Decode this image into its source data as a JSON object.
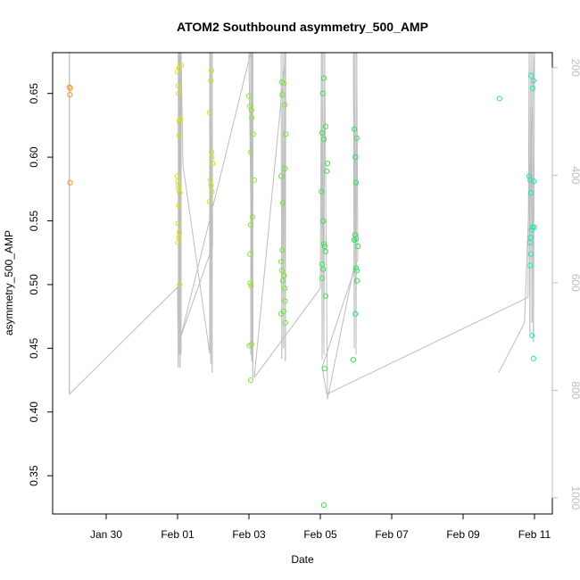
{
  "chart_data": {
    "type": "scatter",
    "title": "ATOM2 Southbound asymmetry_500_AMP",
    "xlabel": "Date",
    "ylabel": "asymmetry_500_AMP",
    "x_ticks": [
      "Jan 30",
      "Feb 01",
      "Feb 03",
      "Feb 05",
      "Feb 07",
      "Feb 09",
      "Feb 11"
    ],
    "x_tick_days": [
      30,
      32,
      34,
      36,
      38,
      40,
      42
    ],
    "xlim_days": [
      28.5,
      42.5
    ],
    "ylim": [
      0.32,
      0.682
    ],
    "y_ticks": [
      0.35,
      0.4,
      0.45,
      0.5,
      0.55,
      0.6,
      0.65
    ],
    "y_tick_labels": [
      "0.35",
      "0.40",
      "0.45",
      "0.50",
      "0.55",
      "0.60",
      "0.65"
    ],
    "right_axis": {
      "color": "#bdbdbd",
      "ylim": [
        1030,
        172
      ],
      "ticks": [
        200,
        400,
        600,
        800,
        1000
      ],
      "tick_labels": [
        "200",
        "400",
        "600",
        "800",
        "1000"
      ]
    },
    "line_color": "#bdbdbd",
    "point_colors": {
      "early": "#f29a2e",
      "feb1": "#d8e021",
      "feb2": "#c9e326",
      "feb3": "#8fe335",
      "feb4": "#6fe33d",
      "feb5": "#43e04d",
      "feb6": "#2fe05b",
      "feb10": "#26e39b",
      "feb11": "#21e6b5"
    },
    "series": [
      {
        "group": "early",
        "points": [
          [
            28.97,
            0.655
          ],
          [
            28.99,
            0.654
          ],
          [
            28.98,
            0.649
          ],
          [
            28.99,
            0.58
          ]
        ]
      },
      {
        "group": "feb1",
        "points": [
          [
            32.0,
            0.667
          ],
          [
            32.05,
            0.67
          ],
          [
            32.1,
            0.672
          ],
          [
            32.02,
            0.656
          ],
          [
            32.03,
            0.65
          ],
          [
            32.08,
            0.63
          ],
          [
            32.05,
            0.628
          ],
          [
            32.04,
            0.617
          ],
          [
            32.0,
            0.585
          ],
          [
            32.01,
            0.581
          ],
          [
            32.02,
            0.578
          ],
          [
            32.03,
            0.575
          ],
          [
            32.06,
            0.572
          ],
          [
            32.04,
            0.562
          ],
          [
            32.02,
            0.548
          ],
          [
            32.05,
            0.541
          ],
          [
            32.04,
            0.537
          ],
          [
            32.01,
            0.533
          ],
          [
            32.06,
            0.5
          ]
        ]
      },
      {
        "group": "feb2",
        "points": [
          [
            32.95,
            0.668
          ],
          [
            32.93,
            0.66
          ],
          [
            32.9,
            0.635
          ],
          [
            32.95,
            0.604
          ],
          [
            32.96,
            0.6
          ],
          [
            32.98,
            0.595
          ],
          [
            32.92,
            0.582
          ],
          [
            32.94,
            0.578
          ],
          [
            32.96,
            0.573
          ],
          [
            32.9,
            0.565
          ]
        ]
      },
      {
        "group": "feb3",
        "points": [
          [
            34.0,
            0.648
          ],
          [
            34.03,
            0.64
          ],
          [
            34.07,
            0.637
          ],
          [
            34.08,
            0.631
          ],
          [
            34.12,
            0.618
          ],
          [
            34.05,
            0.604
          ],
          [
            34.15,
            0.582
          ],
          [
            34.1,
            0.553
          ],
          [
            34.05,
            0.547
          ],
          [
            34.03,
            0.524
          ],
          [
            34.04,
            0.501
          ],
          [
            34.06,
            0.499
          ],
          [
            34.01,
            0.452
          ],
          [
            34.07,
            0.453
          ],
          [
            34.05,
            0.425
          ]
        ]
      },
      {
        "group": "feb4",
        "points": [
          [
            34.92,
            0.659
          ],
          [
            34.97,
            0.658
          ],
          [
            34.93,
            0.649
          ],
          [
            35.0,
            0.641
          ],
          [
            35.03,
            0.618
          ],
          [
            35.01,
            0.591
          ],
          [
            34.9,
            0.585
          ],
          [
            34.95,
            0.564
          ],
          [
            34.93,
            0.527
          ],
          [
            34.9,
            0.518
          ],
          [
            34.92,
            0.511
          ],
          [
            34.98,
            0.507
          ],
          [
            35.0,
            0.497
          ],
          [
            34.95,
            0.503
          ],
          [
            35.01,
            0.487
          ],
          [
            34.97,
            0.479
          ],
          [
            34.9,
            0.477
          ],
          [
            35.02,
            0.47
          ]
        ]
      },
      {
        "group": "feb5",
        "points": [
          [
            36.1,
            0.662
          ],
          [
            36.07,
            0.65
          ],
          [
            36.15,
            0.624
          ],
          [
            36.05,
            0.619
          ],
          [
            36.1,
            0.614
          ],
          [
            36.2,
            0.595
          ],
          [
            36.18,
            0.589
          ],
          [
            36.03,
            0.573
          ],
          [
            36.08,
            0.55
          ],
          [
            36.1,
            0.532
          ],
          [
            36.12,
            0.53
          ],
          [
            36.15,
            0.526
          ],
          [
            36.05,
            0.516
          ],
          [
            36.08,
            0.512
          ],
          [
            36.05,
            0.505
          ],
          [
            36.15,
            0.491
          ],
          [
            36.12,
            0.434
          ],
          [
            36.1,
            0.327
          ]
        ]
      },
      {
        "group": "feb6",
        "points": [
          [
            36.95,
            0.622
          ],
          [
            37.02,
            0.615
          ],
          [
            36.98,
            0.6
          ],
          [
            37.0,
            0.58
          ],
          [
            37.05,
            0.53
          ],
          [
            36.97,
            0.539
          ],
          [
            37.0,
            0.536
          ],
          [
            36.95,
            0.535
          ],
          [
            37.0,
            0.513
          ],
          [
            37.02,
            0.511
          ],
          [
            37.03,
            0.503
          ],
          [
            36.98,
            0.477
          ],
          [
            36.92,
            0.441
          ]
        ]
      },
      {
        "group": "feb10",
        "points": [
          [
            41.02,
            0.646
          ]
        ]
      },
      {
        "group": "feb11",
        "points": [
          [
            41.9,
            0.664
          ],
          [
            41.97,
            0.66
          ],
          [
            41.95,
            0.654
          ],
          [
            41.85,
            0.585
          ],
          [
            41.88,
            0.582
          ],
          [
            41.98,
            0.581
          ],
          [
            41.9,
            0.572
          ],
          [
            41.95,
            0.545
          ],
          [
            41.92,
            0.543
          ],
          [
            41.99,
            0.545
          ],
          [
            41.89,
            0.537
          ],
          [
            41.87,
            0.533
          ],
          [
            41.9,
            0.524
          ],
          [
            41.88,
            0.515
          ],
          [
            41.93,
            0.46
          ],
          [
            41.97,
            0.442
          ]
        ]
      }
    ],
    "line_path": [
      [
        28.97,
        0.414
      ],
      [
        28.97,
        0.682
      ],
      [
        28.97,
        0.414
      ],
      [
        32.0,
        0.498
      ],
      [
        32.02,
        0.435
      ],
      [
        32.02,
        0.682
      ],
      [
        32.05,
        0.445
      ],
      [
        32.05,
        0.682
      ],
      [
        32.07,
        0.435
      ],
      [
        32.07,
        0.682
      ],
      [
        32.1,
        0.445
      ],
      [
        32.1,
        0.682
      ],
      [
        32.15,
        0.594
      ],
      [
        32.9,
        0.446
      ],
      [
        32.9,
        0.682
      ],
      [
        32.93,
        0.438
      ],
      [
        32.93,
        0.682
      ],
      [
        32.97,
        0.431
      ],
      [
        32.97,
        0.682
      ],
      [
        32.98,
        0.53
      ],
      [
        32.1,
        0.46
      ],
      [
        34.05,
        0.682
      ],
      [
        34.05,
        0.445
      ],
      [
        34.08,
        0.682
      ],
      [
        34.08,
        0.44
      ],
      [
        34.11,
        0.682
      ],
      [
        34.11,
        0.427
      ],
      [
        34.0,
        0.682
      ],
      [
        34.9,
        0.682
      ],
      [
        34.92,
        0.442
      ],
      [
        34.95,
        0.682
      ],
      [
        34.97,
        0.45
      ],
      [
        35.0,
        0.682
      ],
      [
        35.02,
        0.44
      ],
      [
        35.03,
        0.682
      ],
      [
        34.15,
        0.427
      ],
      [
        36.0,
        0.497
      ],
      [
        36.03,
        0.682
      ],
      [
        36.05,
        0.441
      ],
      [
        36.07,
        0.682
      ],
      [
        36.1,
        0.445
      ],
      [
        36.12,
        0.682
      ],
      [
        36.2,
        0.41
      ],
      [
        36.95,
        0.515
      ],
      [
        36.93,
        0.682
      ],
      [
        36.95,
        0.45
      ],
      [
        36.97,
        0.682
      ],
      [
        37.0,
        0.445
      ],
      [
        37.02,
        0.682
      ],
      [
        37.05,
        0.52
      ],
      [
        36.05,
        0.435
      ],
      [
        36.18,
        0.414
      ],
      [
        41.82,
        0.49
      ],
      [
        41.85,
        0.682
      ],
      [
        41.87,
        0.462
      ],
      [
        41.9,
        0.682
      ],
      [
        41.93,
        0.47
      ],
      [
        41.95,
        0.682
      ],
      [
        41.97,
        0.455
      ],
      [
        42.0,
        0.682
      ],
      [
        41.72,
        0.47
      ],
      [
        41.0,
        0.431
      ]
    ]
  }
}
